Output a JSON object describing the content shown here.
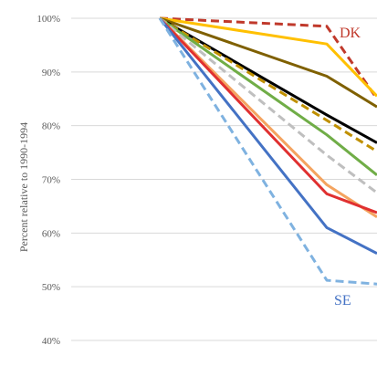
{
  "chart_data": {
    "type": "line",
    "ylabel": "Percent relative to 1990-1994",
    "yticks": [
      {
        "value": 40,
        "label": "40%"
      },
      {
        "value": 50,
        "label": "50%"
      },
      {
        "value": 60,
        "label": "60%"
      },
      {
        "value": 70,
        "label": "70%"
      },
      {
        "value": 80,
        "label": "80%"
      },
      {
        "value": 90,
        "label": "90%"
      },
      {
        "value": 100,
        "label": "100%"
      }
    ],
    "ylim": [
      35,
      100
    ],
    "grid": true,
    "series": [
      {
        "name": "DK",
        "color": "#c0392b",
        "dash": "dashed",
        "values": [
          100,
          98.5,
          85
        ]
      },
      {
        "color": "#ffc000",
        "dash": "solid",
        "values": [
          100,
          95.2,
          85.5
        ]
      },
      {
        "color": "#7f6000",
        "dash": "solid",
        "values": [
          100,
          89.2,
          83.5
        ]
      },
      {
        "color": "#000000",
        "dash": "solid",
        "values": [
          100,
          82.0,
          76.8
        ]
      },
      {
        "color": "#c09000",
        "dash": "dashed",
        "values": [
          100,
          81.0,
          75.2
        ]
      },
      {
        "color": "#70ad47",
        "dash": "solid",
        "values": [
          100,
          78.3,
          70.8
        ]
      },
      {
        "color": "#bfbfbf",
        "dash": "dashed",
        "values": [
          100,
          74.5,
          67.5
        ]
      },
      {
        "color": "#f4a460",
        "dash": "solid",
        "values": [
          100,
          69.0,
          63.0
        ]
      },
      {
        "color": "#e03030",
        "dash": "solid",
        "values": [
          100,
          67.3,
          63.8
        ]
      },
      {
        "color": "#4472c4",
        "dash": "solid",
        "values": [
          100,
          61.0,
          56.2
        ]
      },
      {
        "name": "SE",
        "color": "#7fb2e0",
        "dash": "dashed",
        "values": [
          100,
          51.2,
          50.5
        ]
      }
    ],
    "annotations": [
      {
        "text": "DK",
        "color": "#c0392b"
      },
      {
        "text": "SE",
        "color": "#4472c4"
      }
    ]
  }
}
